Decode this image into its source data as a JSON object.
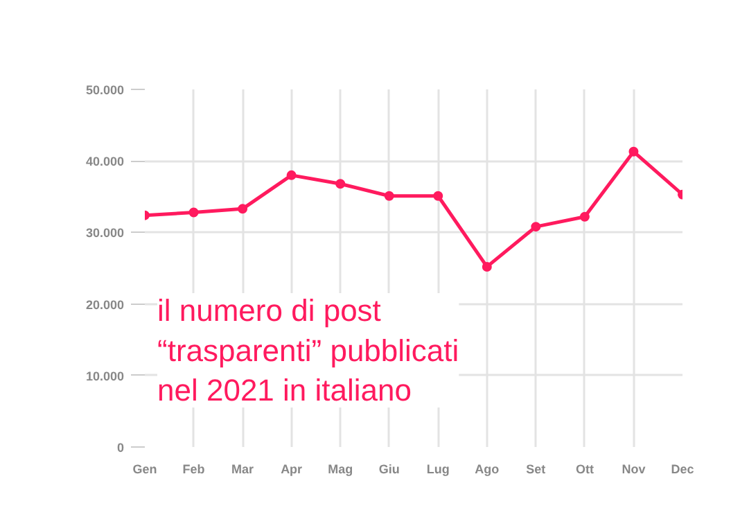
{
  "chart_data": {
    "type": "line",
    "categories": [
      "Gen",
      "Feb",
      "Mar",
      "Apr",
      "Mag",
      "Giu",
      "Lug",
      "Ago",
      "Set",
      "Ott",
      "Nov",
      "Dec"
    ],
    "series": [
      {
        "color": "#ff1a5e",
        "values": [
          32400,
          32800,
          33300,
          38000,
          36800,
          35100,
          35100,
          25200,
          30800,
          32200,
          41300,
          35300
        ]
      }
    ],
    "ylim": [
      0,
      50000
    ],
    "yticks": [
      {
        "value": 0,
        "label": "0"
      },
      {
        "value": 10000,
        "label": "10.000"
      },
      {
        "value": 20000,
        "label": "20.000"
      },
      {
        "value": 30000,
        "label": "30.000"
      },
      {
        "value": 40000,
        "label": "40.000"
      },
      {
        "value": 50000,
        "label": "50.000"
      }
    ],
    "grid": true,
    "marker": "circle",
    "line_style": "solid",
    "annotations": [
      "il numero di post\n“trasparenti” pubblicati\nnel 2021 in italiano"
    ]
  }
}
